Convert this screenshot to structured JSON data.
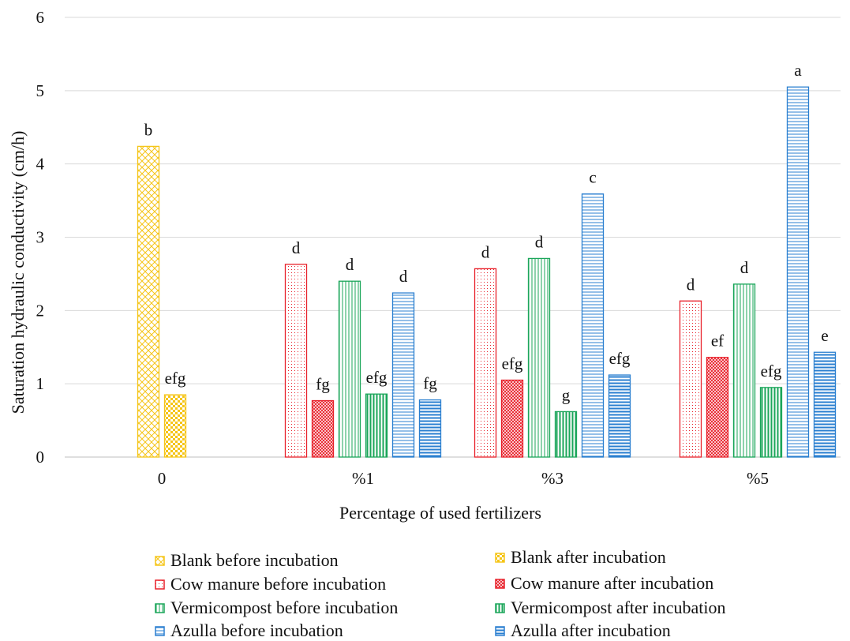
{
  "chart_data": {
    "type": "bar",
    "title": "",
    "xlabel": "Percentage of used fertilizers",
    "ylabel": "Saturation hydraulic conductivity (cm/h)",
    "ylim": [
      0,
      6
    ],
    "yticks": [
      "0",
      "1",
      "2",
      "3",
      "4",
      "5",
      "6"
    ],
    "grid": true,
    "legend_position": "bottom",
    "categories": [
      "0",
      "%1",
      "%3",
      "%5"
    ],
    "series": [
      {
        "name": "Blank before incubation",
        "color": "#F5C518",
        "pattern": "crosshatch",
        "values": [
          4.24,
          null,
          null,
          null
        ],
        "labels": [
          "b",
          "",
          "",
          ""
        ]
      },
      {
        "name": "Blank after incubation",
        "color": "#F5C518",
        "pattern": "checker",
        "values": [
          0.85,
          null,
          null,
          null
        ],
        "labels": [
          "efg",
          "",
          "",
          ""
        ]
      },
      {
        "name": "Cow manure before incubation",
        "color": "#E8202A",
        "pattern": "dots",
        "values": [
          null,
          2.63,
          2.57,
          2.13
        ],
        "labels": [
          "",
          "d",
          "d",
          "d"
        ]
      },
      {
        "name": "Cow manure after incubation",
        "color": "#E8202A",
        "pattern": "dense-crosshatch",
        "values": [
          null,
          0.77,
          1.05,
          1.36
        ],
        "labels": [
          "",
          "fg",
          "efg",
          "ef"
        ]
      },
      {
        "name": "Vermicompost before incubation",
        "color": "#1BA65A",
        "pattern": "vertical-lines",
        "values": [
          null,
          2.4,
          2.71,
          2.36
        ],
        "labels": [
          "",
          "d",
          "d",
          "d"
        ]
      },
      {
        "name": "Vermicompost after incubation",
        "color": "#1BA65A",
        "pattern": "vertical-bold",
        "values": [
          null,
          0.86,
          0.62,
          0.95
        ],
        "labels": [
          "",
          "efg",
          "g",
          "efg"
        ]
      },
      {
        "name": "Azulla before incubation",
        "color": "#2A7FD0",
        "pattern": "horizontal-lines",
        "values": [
          null,
          2.24,
          3.59,
          5.05
        ],
        "labels": [
          "",
          "d",
          "c",
          "a"
        ]
      },
      {
        "name": "Azulla after incubation",
        "color": "#2A7FD0",
        "pattern": "horizontal-bold",
        "values": [
          null,
          0.78,
          1.12,
          1.43
        ],
        "labels": [
          "",
          "fg",
          "efg",
          "e"
        ]
      }
    ]
  },
  "legend": {
    "items": [
      "Blank before incubation",
      "Blank after incubation",
      "Cow manure before incubation",
      "Cow manure after incubation",
      "Vermicompost before incubation",
      "Vermicompost after incubation",
      "Azulla before incubation",
      "Azulla after incubation"
    ]
  }
}
